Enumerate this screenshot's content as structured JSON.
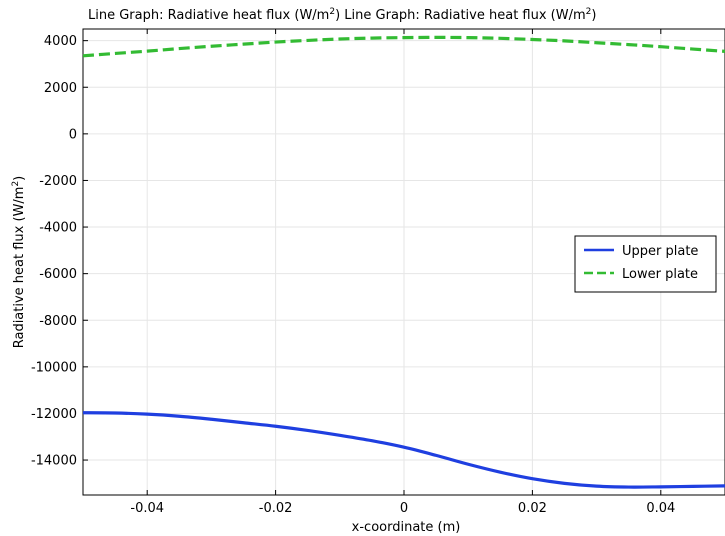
{
  "chart_data": {
    "type": "line",
    "title": "Line Graph: Radiative heat flux (W/m²)  Line Graph: Radiative heat flux (W/m²)",
    "title_parts": [
      {
        "text": "Line Graph: Radiative heat flux (W/m"
      },
      {
        "text": "2",
        "sup": true
      },
      {
        "text": ")  Line Graph: Radiative heat flux (W/m"
      },
      {
        "text": "2",
        "sup": true
      },
      {
        "text": ")"
      }
    ],
    "xlabel": "x-coordinate (m)",
    "ylabel": "Radiative heat flux (W/m²)",
    "ylabel_parts": [
      {
        "text": "Radiative heat flux (W/m"
      },
      {
        "text": "2",
        "sup": true
      },
      {
        "text": ")"
      }
    ],
    "xlim": [
      -0.05,
      0.05
    ],
    "ylim": [
      -15500,
      4500
    ],
    "xticks": [
      -0.04,
      -0.02,
      0,
      0.02,
      0.04
    ],
    "xtick_labels": [
      "-0.04",
      "-0.02",
      "0",
      "0.02",
      "0.04"
    ],
    "yticks": [
      4000,
      2000,
      0,
      -2000,
      -4000,
      -6000,
      -8000,
      -10000,
      -12000,
      -14000
    ],
    "ytick_labels": [
      "4000",
      "2000",
      "0",
      "-2000",
      "-4000",
      "-6000",
      "-8000",
      "-10000",
      "-12000",
      "-14000"
    ],
    "grid": true,
    "legend_position": "right",
    "series": [
      {
        "name": "Upper plate",
        "color": "#1f3fe0",
        "style": "solid",
        "x": [
          -0.05,
          -0.045,
          -0.04,
          -0.035,
          -0.03,
          -0.025,
          -0.02,
          -0.015,
          -0.01,
          -0.005,
          0,
          0.005,
          0.01,
          0.015,
          0.02,
          0.025,
          0.03,
          0.035,
          0.04,
          0.045,
          0.05
        ],
        "y": [
          -11970,
          -11980,
          -12030,
          -12120,
          -12250,
          -12400,
          -12550,
          -12730,
          -12940,
          -13170,
          -13450,
          -13800,
          -14180,
          -14520,
          -14800,
          -15000,
          -15120,
          -15160,
          -15150,
          -15130,
          -15110
        ]
      },
      {
        "name": "Lower plate",
        "color": "#33bb33",
        "style": "dashed",
        "x": [
          -0.05,
          -0.045,
          -0.04,
          -0.035,
          -0.03,
          -0.025,
          -0.02,
          -0.015,
          -0.01,
          -0.005,
          0,
          0.005,
          0.01,
          0.015,
          0.02,
          0.025,
          0.03,
          0.035,
          0.04,
          0.045,
          0.05
        ],
        "y": [
          3350,
          3450,
          3550,
          3660,
          3760,
          3850,
          3940,
          4010,
          4070,
          4110,
          4130,
          4140,
          4130,
          4100,
          4050,
          3990,
          3910,
          3830,
          3740,
          3640,
          3540
        ]
      }
    ]
  }
}
